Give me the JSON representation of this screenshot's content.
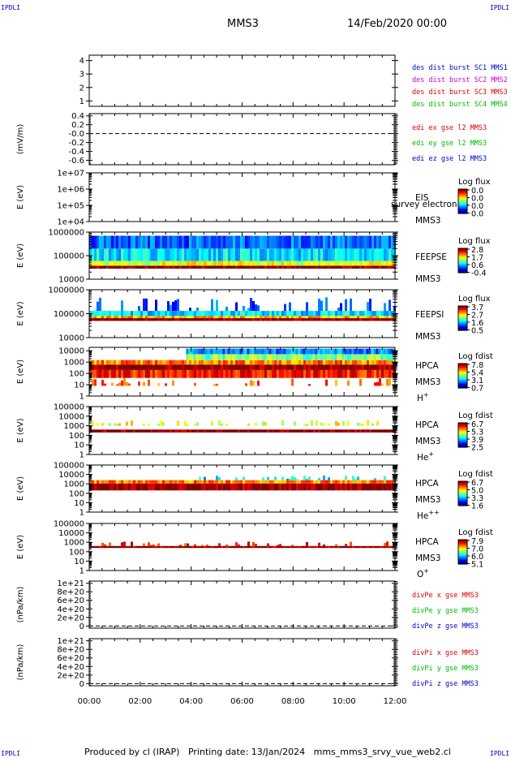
{
  "corner_marks": [
    "IPDLI",
    "IPDLI",
    "IPDLI",
    "IPDLI"
  ],
  "header": {
    "title": "MMS3",
    "date": "14/Feb/2020 00:00"
  },
  "footer": {
    "text": "Produced by cl (IRAP)   Printing date: 13/Jan/2024   mms_mms3_srvy_vue_web2.cl"
  },
  "time_axis": {
    "labels": [
      "00:00",
      "02:00",
      "04:00",
      "06:00",
      "08:00",
      "10:00",
      "12:00"
    ],
    "range_hours": [
      0,
      12
    ]
  },
  "colors": {
    "red": "#e00000",
    "magenta": "#cc00cc",
    "green": "#00bb00",
    "blue": "#0000cc"
  },
  "chart_data": [
    {
      "type": "line",
      "ylabel": "",
      "yticks": [
        "1",
        "2",
        "3",
        "4"
      ],
      "ylim": [
        0.6,
        4.4
      ],
      "legend": [
        {
          "text": "des dist burst SC1 MMS1",
          "color": "#0000cc"
        },
        {
          "text": "des dist burst SC2 MMS2",
          "color": "#cc00cc"
        },
        {
          "text": "des dist burst SC3 MMS3",
          "color": "#e00000"
        },
        {
          "text": "des dist burst SC4 MMS4",
          "color": "#00bb00"
        }
      ],
      "series": []
    },
    {
      "type": "line",
      "ylabel": "(mV/m)",
      "yticks": [
        "0.4",
        "0.2",
        "-0.0",
        "-0.2",
        "-0.4",
        "-0.6"
      ],
      "ylim": [
        -0.7,
        0.45
      ],
      "zero_line": true,
      "legend": [
        {
          "text": "edi ex gse l2 MMS3",
          "color": "#e00000"
        },
        {
          "text": "edi ey gse l2 MMS3",
          "color": "#00bb00"
        },
        {
          "text": "edi ez gse l2 MMS3",
          "color": "#0000cc"
        }
      ],
      "series": []
    },
    {
      "type": "heatmap",
      "ylabel": "E (eV)",
      "yticks": [
        "1e+07",
        "1e+06",
        "1e+05",
        "1e+04"
      ],
      "log": true,
      "ylim": [
        10000,
        10000000
      ],
      "right_labels": [
        "EIS",
        "MMS3"
      ],
      "overlay_text": "survey electron to",
      "colorbar": {
        "title": "Log flux",
        "ticks": [
          "0.0",
          "0.0",
          "0.0",
          "0.0"
        ]
      },
      "bands": []
    },
    {
      "type": "heatmap",
      "ylabel": "E (eV)",
      "yticks": [
        "1000000",
        "100000",
        "10000"
      ],
      "log": true,
      "ylim": [
        10000,
        1000000
      ],
      "right_labels": [
        "FEEPSE",
        "MMS3"
      ],
      "colorbar": {
        "title": "Log flux",
        "ticks": [
          "2.8",
          "1.7",
          "0.6",
          "-0.4"
        ]
      },
      "bands": [
        {
          "emin": 28000,
          "emax": 37000,
          "level": 1.0,
          "coverage": [
            0,
            12
          ]
        },
        {
          "emin": 37000,
          "emax": 60000,
          "level": 0.6,
          "coverage": [
            0,
            12
          ]
        },
        {
          "emin": 60000,
          "emax": 200000,
          "level": 0.35,
          "coverage": [
            0,
            12
          ]
        },
        {
          "emin": 200000,
          "emax": 700000,
          "level": 0.22,
          "coverage": [
            0,
            12
          ]
        }
      ]
    },
    {
      "type": "heatmap",
      "ylabel": "E (eV)",
      "yticks": [
        "1000000",
        "100000",
        "10000"
      ],
      "log": true,
      "ylim": [
        10000,
        1000000
      ],
      "right_labels": [
        "FEEPSI",
        "MMS3"
      ],
      "colorbar": {
        "title": "Log flux",
        "ticks": [
          "3.7",
          "2.7",
          "1.6",
          "0.5"
        ]
      },
      "bands": [
        {
          "emin": 50000,
          "emax": 65000,
          "level": 1.0,
          "coverage": [
            0,
            12
          ]
        },
        {
          "emin": 65000,
          "emax": 80000,
          "level": 0.7,
          "coverage": [
            0,
            12
          ]
        },
        {
          "emin": 80000,
          "emax": 130000,
          "level": 0.35,
          "coverage": [
            0,
            12
          ]
        },
        {
          "emin": 130000,
          "emax": 500000,
          "level": 0.2,
          "coverage": [
            0,
            12
          ],
          "sparse": true
        }
      ]
    },
    {
      "type": "heatmap",
      "ylabel": "E (eV)",
      "yticks": [
        "10000",
        "1000",
        "100",
        "10",
        "1"
      ],
      "log": true,
      "ylim": [
        1,
        20000
      ],
      "right_labels": [
        "HPCA",
        "MMS3",
        "H+"
      ],
      "colorbar": {
        "title": "Log fdist",
        "ticks": [
          "7.8",
          "5.4",
          "3.1",
          "0.7"
        ]
      },
      "bands": [
        {
          "emin": 8,
          "emax": 40,
          "level": 0.78,
          "coverage": [
            0,
            12
          ],
          "sparse": true
        },
        {
          "emin": 40,
          "emax": 200,
          "level": 0.85,
          "coverage": [
            0,
            12
          ]
        },
        {
          "emin": 200,
          "emax": 600,
          "level": 1.0,
          "coverage": [
            0,
            12
          ]
        },
        {
          "emin": 600,
          "emax": 1500,
          "level": 0.75,
          "coverage": [
            0,
            12
          ]
        },
        {
          "emin": 1500,
          "emax": 5000,
          "level": 0.5,
          "coverage": [
            3.8,
            12
          ]
        },
        {
          "emin": 5000,
          "emax": 15000,
          "level": 0.25,
          "coverage": [
            3.8,
            12
          ]
        }
      ]
    },
    {
      "type": "heatmap",
      "ylabel": "E (eV)",
      "yticks": [
        "100000",
        "10000",
        "1000",
        "100",
        "10",
        "1"
      ],
      "log": true,
      "ylim": [
        1,
        100000
      ],
      "right_labels": [
        "HPCA",
        "MMS3",
        "He+"
      ],
      "colorbar": {
        "title": "Log fdist",
        "ticks": [
          "6.7",
          "5.3",
          "3.9",
          "2.5"
        ]
      },
      "bands": [
        {
          "emin": 200,
          "emax": 400,
          "level": 1.0,
          "coverage": [
            0,
            12
          ]
        },
        {
          "emin": 1000,
          "emax": 4000,
          "level": 0.6,
          "coverage": [
            0,
            12
          ],
          "sparse": true
        }
      ]
    },
    {
      "type": "heatmap",
      "ylabel": "E (eV)",
      "yticks": [
        "100000",
        "10000",
        "1000",
        "100",
        "10",
        "1"
      ],
      "log": true,
      "ylim": [
        1,
        100000
      ],
      "right_labels": [
        "HPCA",
        "MMS3",
        "He++"
      ],
      "colorbar": {
        "title": "Log fdist",
        "ticks": [
          "6.7",
          "5.0",
          "3.3",
          "1.6"
        ]
      },
      "bands": [
        {
          "emin": 200,
          "emax": 1100,
          "level": 1.0,
          "coverage": [
            0,
            12
          ]
        },
        {
          "emin": 1100,
          "emax": 2500,
          "level": 0.75,
          "coverage": [
            0,
            12
          ]
        },
        {
          "emin": 2500,
          "emax": 8000,
          "level": 0.35,
          "coverage": [
            4.2,
            12
          ],
          "sparse": true
        }
      ]
    },
    {
      "type": "heatmap",
      "ylabel": "E (eV)",
      "yticks": [
        "100000",
        "10000",
        "1000",
        "100",
        "10",
        "1"
      ],
      "log": true,
      "ylim": [
        1,
        100000
      ],
      "right_labels": [
        "HPCA",
        "MMS3",
        "O+"
      ],
      "colorbar": {
        "title": "Log fdist",
        "ticks": [
          "7.9",
          "7.0",
          "6.0",
          "5.1"
        ]
      },
      "bands": [
        {
          "emin": 250,
          "emax": 400,
          "level": 1.0,
          "coverage": [
            0,
            12
          ]
        },
        {
          "emin": 400,
          "emax": 1200,
          "level": 0.85,
          "coverage": [
            0,
            12
          ],
          "sparse": true
        }
      ]
    },
    {
      "type": "line",
      "ylabel": "(nPa/km)",
      "yticks": [
        "1e+21",
        "8e+20",
        "6e+20",
        "4e+20",
        "2e+20",
        "0"
      ],
      "ylim": [
        -5e+19,
        1.05e+21
      ],
      "zero_line": true,
      "legend": [
        {
          "text": "divPe x gse MMS3",
          "color": "#e00000"
        },
        {
          "text": "divPe y gse MMS3",
          "color": "#00bb00"
        },
        {
          "text": "divPe z gse MMS3",
          "color": "#0000cc"
        }
      ],
      "series": []
    },
    {
      "type": "line",
      "ylabel": "(nPa/km)",
      "yticks": [
        "1e+21",
        "8e+20",
        "6e+20",
        "4e+20",
        "2e+20",
        "0"
      ],
      "ylim": [
        -5e+19,
        1.05e+21
      ],
      "zero_line": true,
      "legend": [
        {
          "text": "divPi x gse MMS3",
          "color": "#e00000"
        },
        {
          "text": "divPi y gse MMS3",
          "color": "#00bb00"
        },
        {
          "text": "divPi z gse MMS3",
          "color": "#0000cc"
        }
      ],
      "series": []
    }
  ]
}
